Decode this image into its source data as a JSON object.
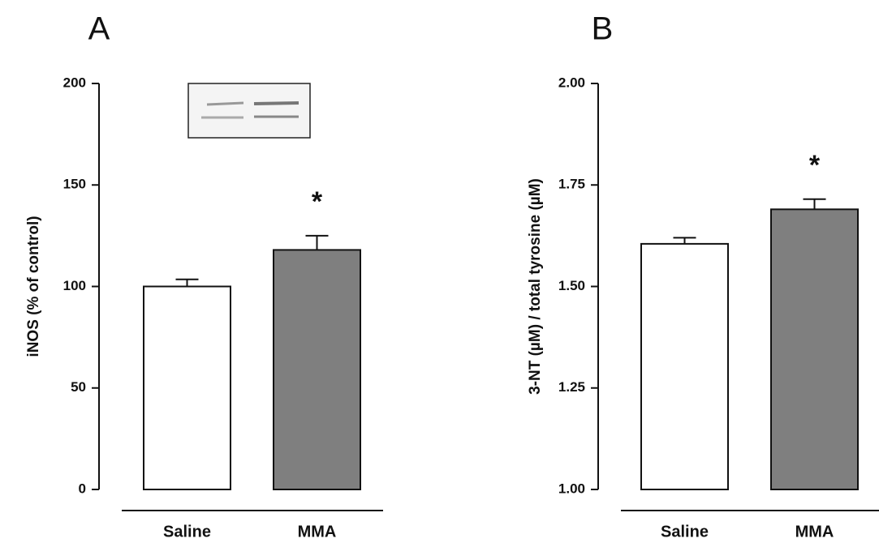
{
  "chart_data": [
    {
      "type": "bar",
      "panel": "A",
      "ylabel": "iNOS (% of control)",
      "categories": [
        "Saline",
        "MMA"
      ],
      "values": [
        100,
        118
      ],
      "errors": [
        3.5,
        7
      ],
      "colors": [
        "#ffffff",
        "#7f7f7f"
      ],
      "annotations": [
        null,
        "*"
      ],
      "ylim": [
        0,
        200
      ],
      "yticks": [
        0,
        50,
        100,
        150,
        200
      ]
    },
    {
      "type": "bar",
      "panel": "B",
      "ylabel": "3-NT (µM) / total tyrosine (µM)",
      "categories": [
        "Saline",
        "MMA"
      ],
      "values": [
        1.605,
        1.69
      ],
      "errors": [
        0.015,
        0.025
      ],
      "colors": [
        "#ffffff",
        "#7f7f7f"
      ],
      "annotations": [
        null,
        "*"
      ],
      "ylim": [
        1,
        2
      ],
      "yticks": [
        {
          "value": 1,
          "label": "1.00"
        },
        {
          "value": 1.25,
          "label": "1.25"
        },
        {
          "value": 1.5,
          "label": "1.50"
        },
        {
          "value": 1.75,
          "label": "1.75"
        },
        {
          "value": 2,
          "label": "2.00"
        }
      ]
    }
  ]
}
